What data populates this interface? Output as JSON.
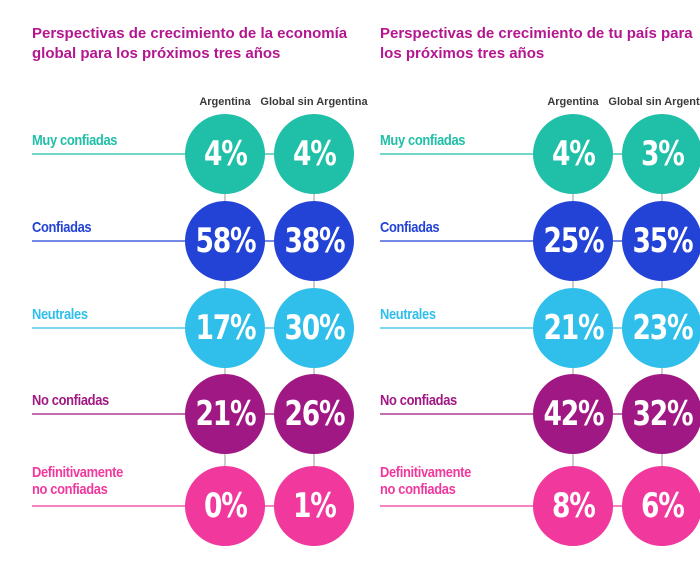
{
  "colors": {
    "title": "#b4168f",
    "muy_confiadas": "#1fbfa8",
    "confiadas": "#2343d6",
    "neutrales": "#2fbfea",
    "no_confiadas": "#a01883",
    "definitivamente_no_confiadas": "#f0389d"
  },
  "chart_data": [
    {
      "type": "table",
      "title": "Perspectivas de crecimiento de la economía global para los próximos tres años",
      "columns": [
        "Argentina",
        "Global sin Argentina"
      ],
      "rows": [
        {
          "label": "Muy confiadas",
          "values": [
            "4%",
            "4%"
          ],
          "color": "#1fbfa8"
        },
        {
          "label": "Confiadas",
          "values": [
            "58%",
            "38%"
          ],
          "color": "#2343d6"
        },
        {
          "label": "Neutrales",
          "values": [
            "17%",
            "30%"
          ],
          "color": "#2fbfea"
        },
        {
          "label": "No confiadas",
          "values": [
            "21%",
            "26%"
          ],
          "color": "#a01883"
        },
        {
          "label": "Definitivamente no confiadas",
          "values": [
            "0%",
            "1%"
          ],
          "color": "#f0389d"
        }
      ]
    },
    {
      "type": "table",
      "title": "Perspectivas de crecimiento de tu país para los próximos tres años",
      "columns": [
        "Argentina",
        "Global sin Argentina"
      ],
      "rows": [
        {
          "label": "Muy confiadas",
          "values": [
            "4%",
            "3%"
          ],
          "color": "#1fbfa8"
        },
        {
          "label": "Confiadas",
          "values": [
            "25%",
            "35%"
          ],
          "color": "#2343d6"
        },
        {
          "label": "Neutrales",
          "values": [
            "21%",
            "23%"
          ],
          "color": "#2fbfea"
        },
        {
          "label": "No confiadas",
          "values": [
            "42%",
            "32%"
          ],
          "color": "#a01883"
        },
        {
          "label": "Definitivamente no confiadas",
          "values": [
            "8%",
            "6%"
          ],
          "color": "#f0389d"
        }
      ]
    }
  ]
}
